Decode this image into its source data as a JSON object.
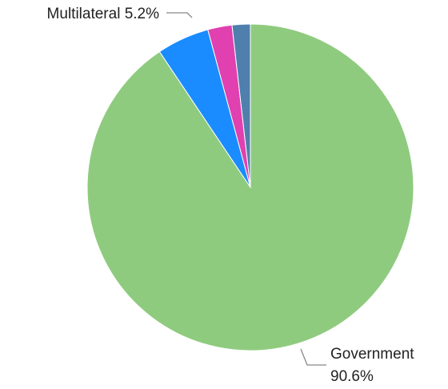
{
  "chart_data": {
    "type": "pie",
    "start_angle_deg": 0,
    "direction": "clockwise",
    "slices": [
      {
        "label": "Government",
        "value": 90.6,
        "color": "#8fcb7f",
        "label_text": [
          "Government",
          "90.6%"
        ]
      },
      {
        "label": "Multilateral",
        "value": 5.2,
        "color": "#1a8cff",
        "label_text": [
          "Multilateral 5.2%"
        ]
      },
      {
        "label": "",
        "value": 2.4,
        "color": "#e040b0"
      },
      {
        "label": "",
        "value": 1.8,
        "color": "#4f7fad"
      }
    ]
  }
}
